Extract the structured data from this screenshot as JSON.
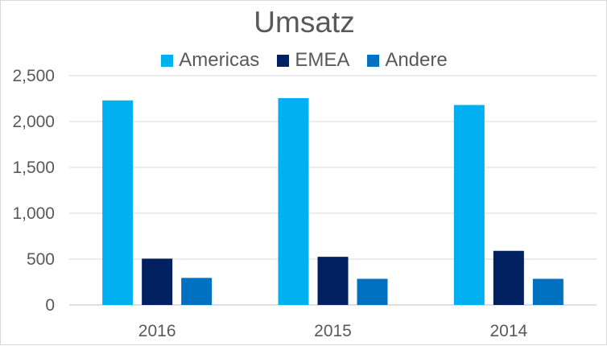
{
  "chart_data": {
    "type": "bar",
    "title": "Umsatz",
    "categories": [
      "2016",
      "2015",
      "2014"
    ],
    "series": [
      {
        "name": "Americas",
        "color": "#00b0f0",
        "values": [
          2230,
          2255,
          2180
        ]
      },
      {
        "name": "EMEA",
        "color": "#002060",
        "values": [
          505,
          525,
          590
        ]
      },
      {
        "name": "Andere",
        "color": "#0070c0",
        "values": [
          295,
          285,
          285
        ]
      }
    ],
    "ylim": [
      0,
      2500
    ],
    "yticks": [
      0,
      500,
      1000,
      1500,
      2000,
      2500
    ],
    "ytick_labels": [
      "0",
      "500",
      "1,000",
      "1,500",
      "2,000",
      "2,500"
    ],
    "grid": true,
    "legend_position": "top"
  }
}
